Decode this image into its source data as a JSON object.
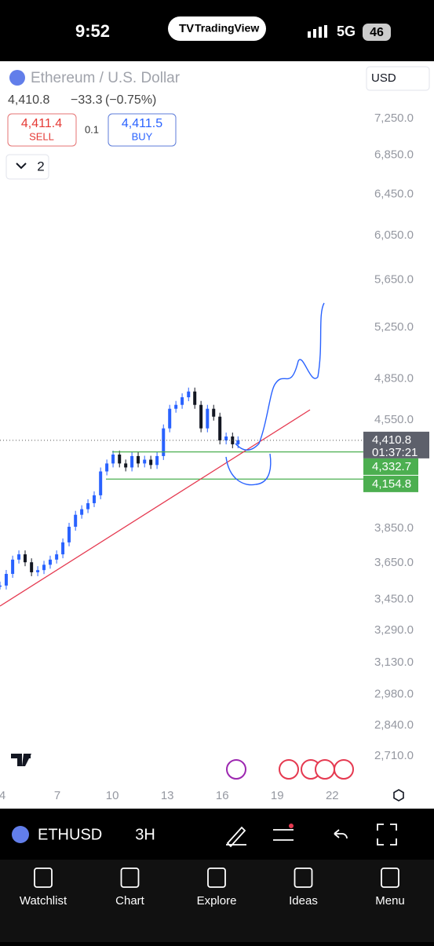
{
  "status_bar": {
    "time": "9:52",
    "app": "TradingView",
    "network": "5G",
    "battery": "46"
  },
  "header": {
    "symbol": "Ethereum / U.S. Dollar",
    "currency": "USD",
    "quote": "4,410.8",
    "change": "−33.3",
    "change_pct": "(−0.75%)",
    "sell_price": "4,411.4",
    "sell_label": "SELL",
    "spread": "0.1",
    "buy_price": "4,411.5",
    "buy_label": "BUY",
    "indicators": "2"
  },
  "chart_data": {
    "type": "candlestick",
    "x": [
      3.87,
      4.21,
      4.56,
      4.9,
      5.24,
      5.59,
      5.93,
      6.27,
      6.61,
      6.96,
      7.3,
      7.64,
      7.99,
      8.33,
      8.67,
      9.01,
      9.36,
      9.7,
      10.04,
      10.39,
      10.73,
      11.07,
      11.41,
      11.76,
      12.1,
      12.44,
      12.79,
      13.13,
      13.47,
      13.81,
      14.16,
      14.5,
      14.84,
      15.19,
      15.53,
      15.87,
      16.21,
      16.56,
      16.86
    ],
    "values": [
      3525,
      3589,
      3669,
      3699,
      3654,
      3598,
      3610,
      3640,
      3669,
      3699,
      3768,
      3860,
      3932,
      3966,
      4003,
      4052,
      4204,
      4256,
      4315,
      4256,
      4230,
      4305,
      4256,
      4281,
      4246,
      4305,
      4493,
      4631,
      4659,
      4714,
      4756,
      4659,
      4493,
      4631,
      4575,
      4410,
      4437,
      4384,
      4411
    ],
    "color_up": "#2962ff",
    "color_down": "#131722",
    "xlim": [
      3.87,
      23.7
    ],
    "xticks": [
      4,
      7,
      10,
      13,
      16,
      19,
      22
    ],
    "ylim": [
      2600,
      7900
    ],
    "log_scale": true,
    "yticks": [
      {
        "value": 7250,
        "label": "7,250.0"
      },
      {
        "value": 6850,
        "label": "6,850.0"
      },
      {
        "value": 6450,
        "label": "6,450.0"
      },
      {
        "value": 6050,
        "label": "6,050.0"
      },
      {
        "value": 5650,
        "label": "5,650.0"
      },
      {
        "value": 5250,
        "label": "5,250.0"
      },
      {
        "value": 4850,
        "label": "4,850.0"
      },
      {
        "value": 4550,
        "label": "4,550.0"
      },
      {
        "value": 3850,
        "label": "3,850.0"
      },
      {
        "value": 3650,
        "label": "3,650.0"
      },
      {
        "value": 3450,
        "label": "3,450.0"
      },
      {
        "value": 3290,
        "label": "3,290.0"
      },
      {
        "value": 3130,
        "label": "3,130.0"
      },
      {
        "value": 2980,
        "label": "2,980.0"
      },
      {
        "value": 2840,
        "label": "2,840.0"
      },
      {
        "value": 2710,
        "label": "2,710.0"
      }
    ],
    "last_price": {
      "value": 4410.8,
      "label": "4,410.8"
    },
    "countdown": "01:37:21",
    "levels": [
      {
        "value": 4332.7,
        "label": "4,332.7",
        "color": "#4caf50"
      },
      {
        "value": 4154.8,
        "label": "4,154.8",
        "color": "#4caf50"
      }
    ]
  },
  "toolbar": {
    "symbol": "ETHUSD",
    "interval": "3H"
  },
  "tabs": [
    "Watchlist",
    "Chart",
    "Explore",
    "Ideas",
    "Menu"
  ]
}
